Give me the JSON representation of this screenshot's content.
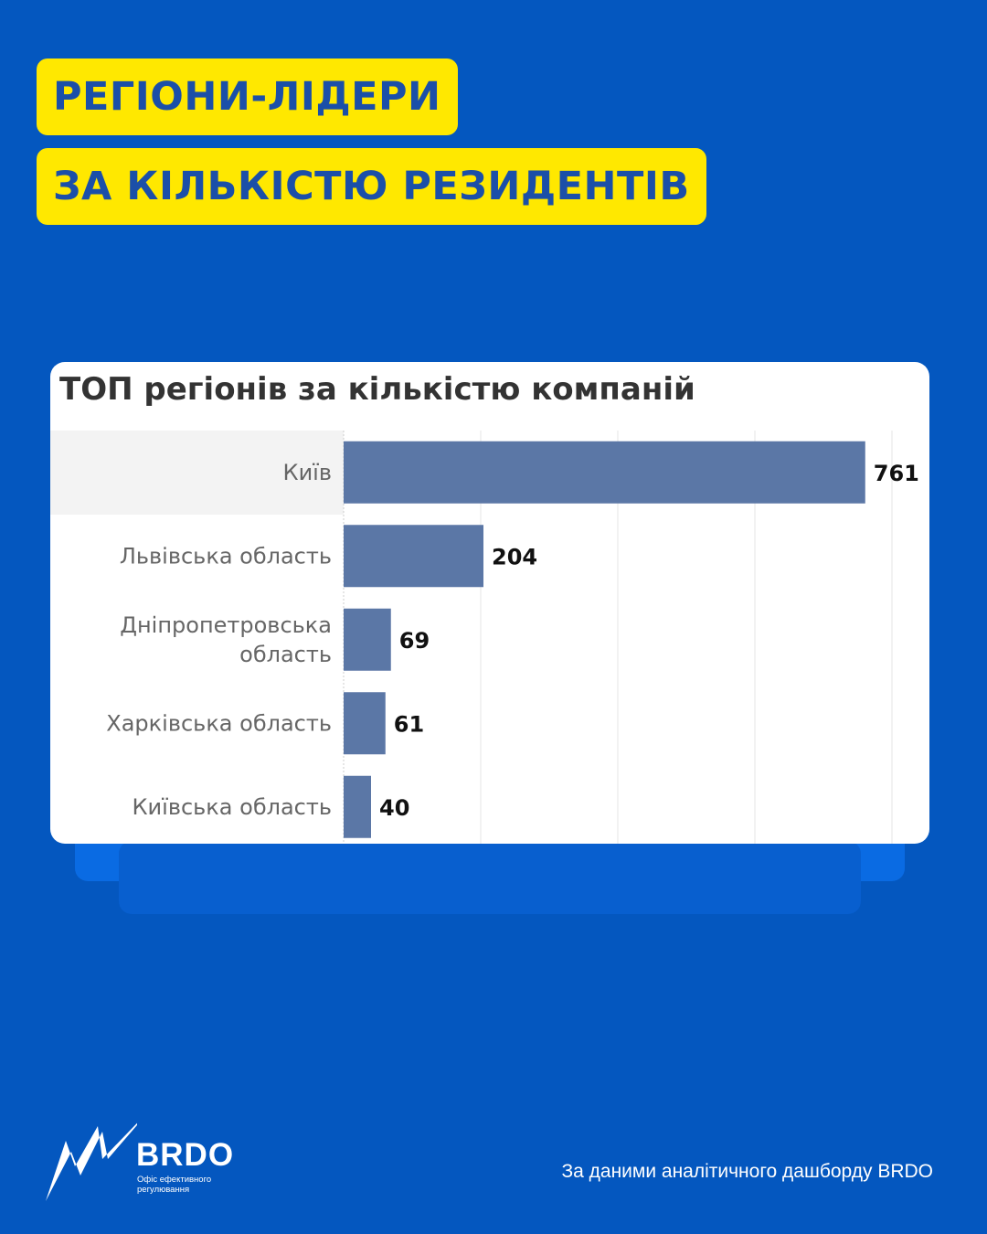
{
  "header": {
    "line1": "РЕГІОНИ-ЛІДЕРИ",
    "line2": "ЗА КІЛЬКІСТЮ РЕЗИДЕНТІВ"
  },
  "colors": {
    "background": "#0457BF",
    "pill": "#FFE800",
    "pill_text": "#1B4FA8",
    "bar": "#5B77A6"
  },
  "chart_data": {
    "type": "bar",
    "orientation": "horizontal",
    "title": "ТОП регіонів за кількістю компаній",
    "categories": [
      "Київ",
      "Львівська область",
      "Дніпропетровська область",
      "Харківська область",
      "Київська область"
    ],
    "values": [
      761,
      204,
      69,
      61,
      40
    ],
    "xlim": [
      0,
      800
    ],
    "grid": true,
    "data_labels": true
  },
  "footer": {
    "brand": "BRDO",
    "tagline": "Офіс ефективного регулювання",
    "source": "За даними аналітичного дашборду BRDO"
  }
}
